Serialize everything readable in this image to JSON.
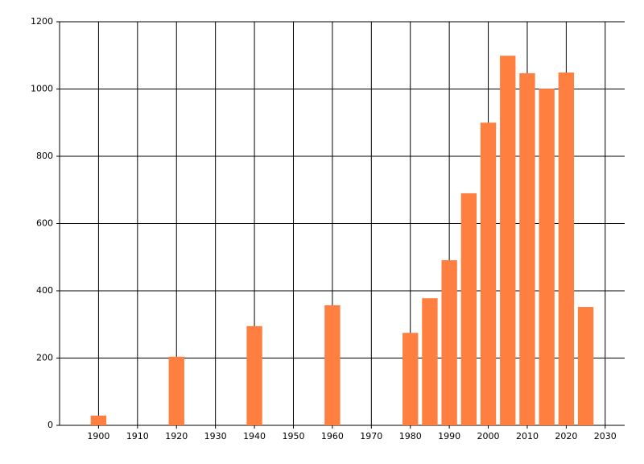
{
  "chart_data": {
    "type": "bar",
    "x": [
      1900,
      1920,
      1940,
      1960,
      1980,
      1985,
      1990,
      1995,
      2000,
      2005,
      2010,
      2015,
      2020,
      2025
    ],
    "values": [
      29,
      204,
      295,
      357,
      275,
      378,
      491,
      690,
      900,
      1099,
      1047,
      1001,
      1049,
      352
    ],
    "color": "#ff7f40",
    "xlim": [
      1890,
      2035
    ],
    "xticks": [
      1900,
      1910,
      1920,
      1930,
      1940,
      1950,
      1960,
      1970,
      1980,
      1990,
      2000,
      2010,
      2020,
      2030
    ],
    "ylim": [
      0,
      1200
    ],
    "yticks": [
      0,
      200,
      400,
      600,
      800,
      1000,
      1200
    ],
    "grid": true
  }
}
